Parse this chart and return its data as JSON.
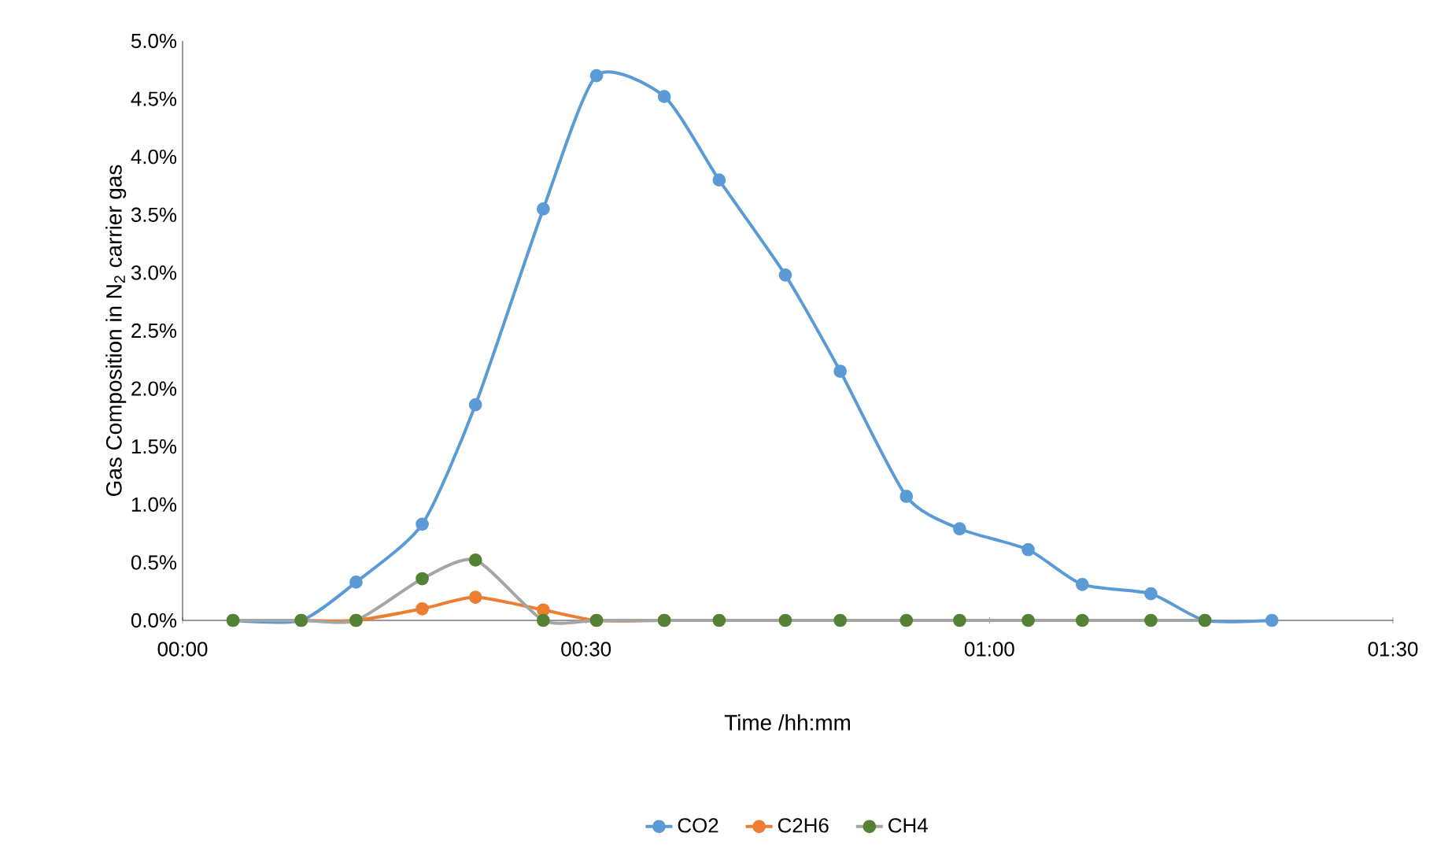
{
  "chart_data": {
    "type": "line",
    "xlabel": "Time /hh:mm",
    "ylabel": "Gas Composition in N$_{2}$ carrier gas",
    "x": [
      0.0625,
      0.147,
      0.215,
      0.297,
      0.363,
      0.447,
      0.513,
      0.597,
      0.665,
      0.747,
      0.815,
      0.897,
      0.963,
      1.048,
      1.115,
      1.2,
      1.267,
      1.35
    ],
    "xlim": [
      0,
      1.5
    ],
    "xticks": [
      {
        "value": 0,
        "label": "00:00"
      },
      {
        "value": 0.5,
        "label": "00:30"
      },
      {
        "value": 1,
        "label": "01:00"
      },
      {
        "value": 1.5,
        "label": "01:30"
      }
    ],
    "ylim": [
      0,
      5
    ],
    "yticks": [
      {
        "value": 0,
        "label": "0.0%"
      },
      {
        "value": 0.5,
        "label": "0.5%"
      },
      {
        "value": 1,
        "label": "1.0%"
      },
      {
        "value": 1.5,
        "label": "1.5%"
      },
      {
        "value": 2,
        "label": "2.0%"
      },
      {
        "value": 2.5,
        "label": "2.5%"
      },
      {
        "value": 3,
        "label": "3.0%"
      },
      {
        "value": 3.5,
        "label": "3.5%"
      },
      {
        "value": 4,
        "label": "4.0%"
      },
      {
        "value": 4.5,
        "label": "4.5%"
      },
      {
        "value": 5,
        "label": "5.0%"
      }
    ],
    "series": [
      {
        "name": "CO2",
        "color": "#5b9bd5",
        "values": [
          0,
          0,
          0.33,
          0.83,
          1.86,
          3.55,
          4.7,
          4.52,
          3.8,
          2.98,
          2.15,
          1.07,
          0.79,
          0.61,
          0.31,
          0.23,
          0,
          0
        ]
      },
      {
        "name": "C2H6",
        "color": "#ed7d31",
        "values": [
          null,
          0,
          0,
          0.1,
          0.2,
          0.09,
          0,
          0,
          null,
          null,
          null,
          null,
          null,
          null,
          null,
          null,
          null,
          null
        ]
      },
      {
        "name": "CH4",
        "color": "#a5a5a5",
        "colors": [
          "#548235",
          "#548235",
          "#548235",
          "#548235",
          "#548235",
          "#548235",
          "#548235",
          "#548235",
          "#548235",
          "#548235",
          "#548235",
          "#548235",
          "#548235",
          "#548235",
          "#548235",
          "#548235",
          "#548235",
          "#548235"
        ],
        "values": [
          0,
          0,
          0,
          0.36,
          0.52,
          0,
          0,
          0,
          0,
          0,
          0,
          0,
          0,
          0,
          0,
          0,
          0,
          null
        ]
      }
    ],
    "marker": "circle",
    "legend": "bottom",
    "grid": false
  }
}
